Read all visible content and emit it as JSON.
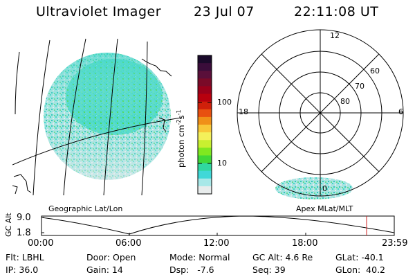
{
  "header": {
    "title": "Ultraviolet Imager",
    "date": "23 Jul 07",
    "time": "22:11:08 UT"
  },
  "colorbar": {
    "unit_label": "photon cm",
    "unit_sup1": "-2",
    "unit_s": "s",
    "unit_sup2": "-1",
    "ticks": [
      "100",
      "10"
    ],
    "colors": [
      "#1a0a2a",
      "#3a0d3a",
      "#5a0f3a",
      "#7a0a28",
      "#9a001a",
      "#b8000e",
      "#d0200a",
      "#e85010",
      "#f09018",
      "#f8c838",
      "#f4f05a",
      "#c8f030",
      "#80e820",
      "#40d838",
      "#30d8a0",
      "#40d8d8",
      "#a8e8e8",
      "#e8ecec"
    ]
  },
  "geo_panel": {
    "caption": "Geographic Lat/Lon"
  },
  "polar_panel": {
    "caption": "Apex MLat/MLT",
    "mlt_labels": [
      "12",
      "18",
      "6",
      "0"
    ],
    "mlat_labels": [
      "60",
      "70",
      "80"
    ]
  },
  "timeline": {
    "axis_title": "GC Alt",
    "y_labels": [
      "9.0",
      "1.8"
    ],
    "x_labels": [
      "00:00",
      "06:00",
      "12:00",
      "18:00",
      "23:59"
    ],
    "marker_time": "22:11"
  },
  "info": {
    "filter": "Flt: LBHL",
    "ip": "IP: 36.0",
    "door": "Door: Open",
    "gain": "Gain: 14",
    "mode": "Mode: Normal",
    "dsp": "Dsp:   -7.6",
    "gc_alt": "GC Alt: 4.6 Re",
    "seq": "Seq: 39",
    "glat": "GLat: -40.1",
    "glon": "GLon:  40.2"
  },
  "colors": {
    "aurora_main": "#40d8c8",
    "aurora_bright": "#40d840",
    "marker": "#d02020"
  }
}
